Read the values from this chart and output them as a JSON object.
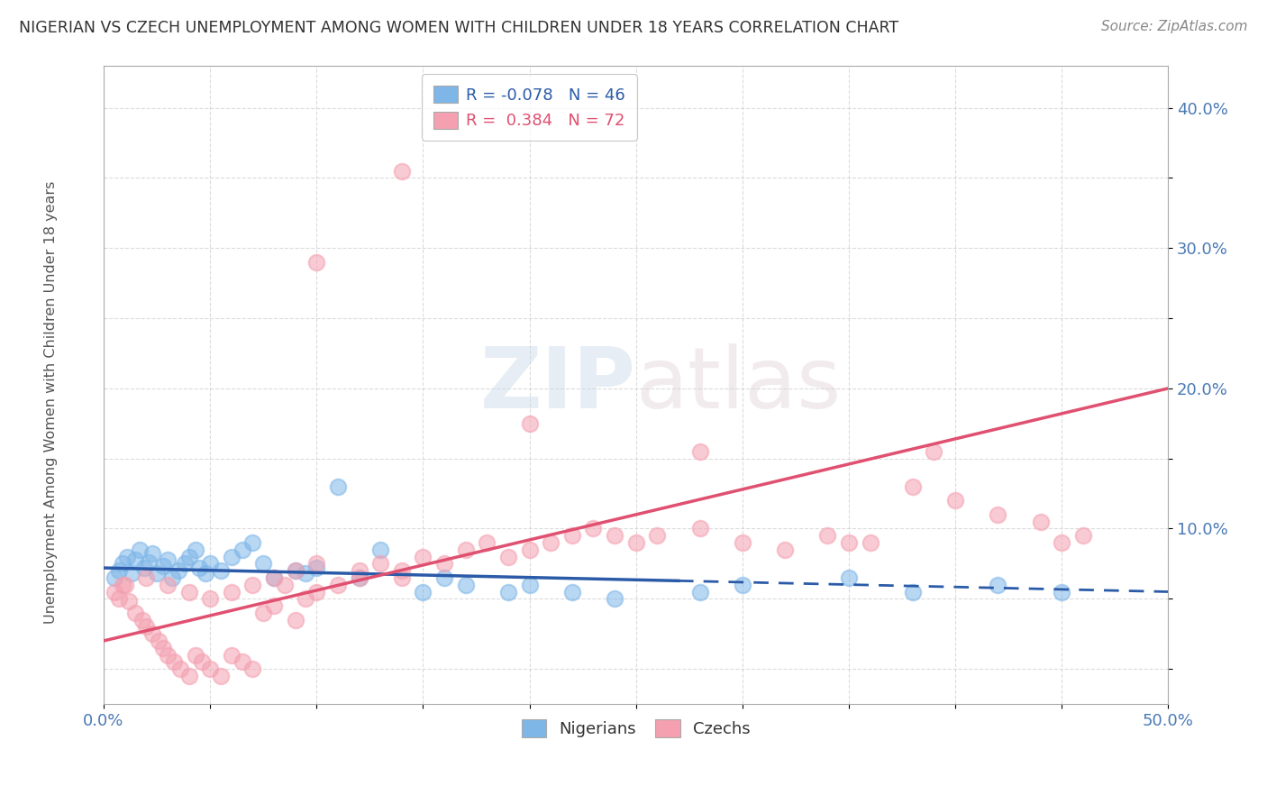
{
  "title": "NIGERIAN VS CZECH UNEMPLOYMENT AMONG WOMEN WITH CHILDREN UNDER 18 YEARS CORRELATION CHART",
  "source": "Source: ZipAtlas.com",
  "ylabel": "Unemployment Among Women with Children Under 18 years",
  "xlim": [
    0.0,
    0.5
  ],
  "ylim": [
    -0.025,
    0.43
  ],
  "nigerian_color": "#7EB6E8",
  "czech_color": "#F4A0B0",
  "nigerian_line_color": "#2B5BA8",
  "czech_line_color": "#E05070",
  "R_nigerian": -0.078,
  "N_nigerian": 46,
  "R_czech": 0.384,
  "N_czech": 72,
  "nig_line_start_y": 0.072,
  "nig_line_end_y": 0.055,
  "czech_line_start_y": 0.02,
  "czech_line_end_y": 0.2,
  "nig_x": [
    0.005,
    0.007,
    0.009,
    0.011,
    0.013,
    0.015,
    0.017,
    0.019,
    0.021,
    0.023,
    0.025,
    0.028,
    0.03,
    0.032,
    0.035,
    0.038,
    0.04,
    0.043,
    0.045,
    0.048,
    0.05,
    0.055,
    0.06,
    0.065,
    0.07,
    0.075,
    0.08,
    0.09,
    0.095,
    0.1,
    0.11,
    0.12,
    0.13,
    0.15,
    0.16,
    0.17,
    0.19,
    0.2,
    0.22,
    0.24,
    0.28,
    0.3,
    0.35,
    0.38,
    0.42,
    0.45
  ],
  "nig_y": [
    0.065,
    0.07,
    0.075,
    0.08,
    0.068,
    0.078,
    0.085,
    0.072,
    0.076,
    0.082,
    0.068,
    0.073,
    0.078,
    0.065,
    0.07,
    0.075,
    0.08,
    0.085,
    0.072,
    0.068,
    0.075,
    0.07,
    0.08,
    0.085,
    0.09,
    0.075,
    0.065,
    0.07,
    0.068,
    0.072,
    0.13,
    0.065,
    0.085,
    0.055,
    0.065,
    0.06,
    0.055,
    0.06,
    0.055,
    0.05,
    0.055,
    0.06,
    0.065,
    0.055,
    0.06,
    0.055
  ],
  "czech_x": [
    0.005,
    0.007,
    0.009,
    0.012,
    0.015,
    0.018,
    0.02,
    0.023,
    0.026,
    0.028,
    0.03,
    0.033,
    0.036,
    0.04,
    0.043,
    0.046,
    0.05,
    0.055,
    0.06,
    0.065,
    0.07,
    0.075,
    0.08,
    0.085,
    0.09,
    0.095,
    0.1,
    0.11,
    0.12,
    0.13,
    0.14,
    0.15,
    0.16,
    0.17,
    0.18,
    0.19,
    0.2,
    0.21,
    0.22,
    0.23,
    0.24,
    0.25,
    0.26,
    0.28,
    0.3,
    0.32,
    0.34,
    0.36,
    0.38,
    0.4,
    0.42,
    0.44,
    0.46,
    0.01,
    0.02,
    0.03,
    0.04,
    0.05,
    0.06,
    0.07,
    0.08,
    0.09,
    0.1,
    0.12,
    0.14,
    0.2,
    0.28,
    0.35,
    0.39,
    0.45,
    0.14,
    0.1
  ],
  "czech_y": [
    0.055,
    0.05,
    0.06,
    0.048,
    0.04,
    0.035,
    0.03,
    0.025,
    0.02,
    0.015,
    0.01,
    0.005,
    0.0,
    -0.005,
    0.01,
    0.005,
    0.0,
    -0.005,
    0.01,
    0.005,
    0.0,
    0.04,
    0.045,
    0.06,
    0.035,
    0.05,
    0.055,
    0.06,
    0.07,
    0.075,
    0.065,
    0.08,
    0.075,
    0.085,
    0.09,
    0.08,
    0.085,
    0.09,
    0.095,
    0.1,
    0.095,
    0.09,
    0.095,
    0.1,
    0.09,
    0.085,
    0.095,
    0.09,
    0.13,
    0.12,
    0.11,
    0.105,
    0.095,
    0.06,
    0.065,
    0.06,
    0.055,
    0.05,
    0.055,
    0.06,
    0.065,
    0.07,
    0.075,
    0.065,
    0.07,
    0.175,
    0.155,
    0.09,
    0.155,
    0.09,
    0.355,
    0.29
  ]
}
